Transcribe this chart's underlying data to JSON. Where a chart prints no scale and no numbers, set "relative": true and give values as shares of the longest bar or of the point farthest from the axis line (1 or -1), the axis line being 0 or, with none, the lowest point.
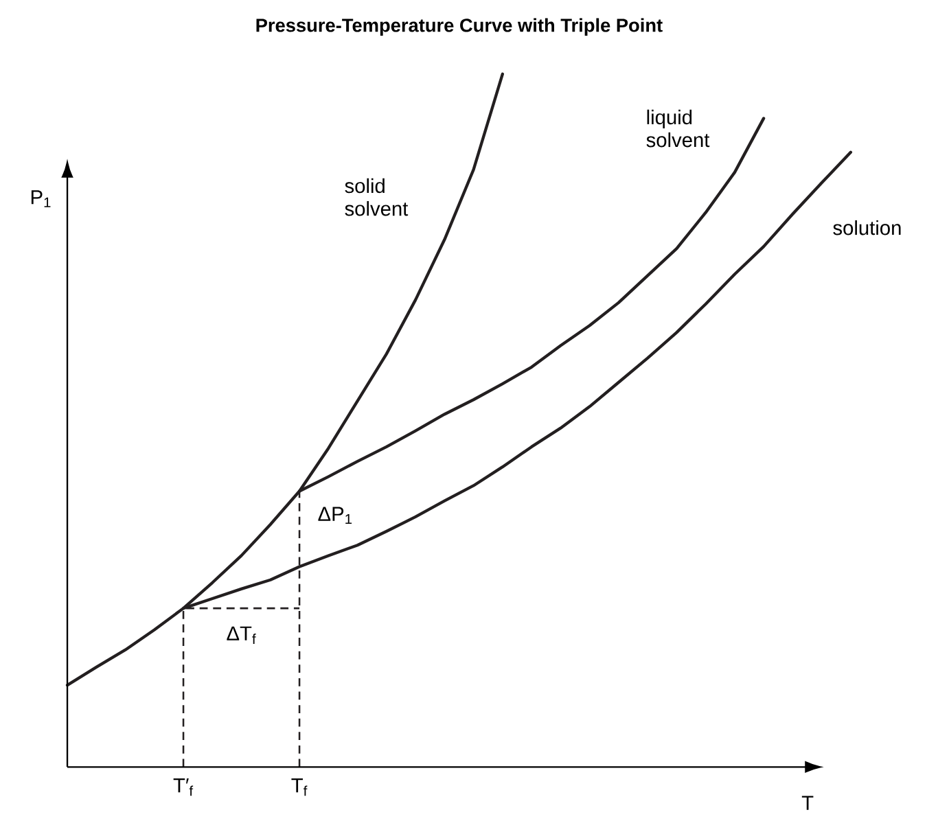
{
  "chart_data": {
    "type": "line",
    "title": "Pressure-Temperature Curve with Triple Point",
    "xlabel": "T",
    "ylabel": "P$_{1}$",
    "relative": true,
    "categories": [
      null,
      null,
      null,
      null,
      null,
      null,
      null,
      null,
      null,
      null,
      null,
      null,
      null,
      null,
      null,
      null,
      null,
      null,
      null,
      null,
      null,
      null,
      null,
      null,
      null,
      null,
      null,
      null
    ],
    "series": [
      {
        "name": "solid solvent",
        "color": "#231f20",
        "values": [
          0.118,
          0.144,
          0.169,
          0.198,
          0.229,
          0.266,
          0.305,
          0.35,
          0.398,
          0.46,
          0.528,
          0.596,
          0.674,
          0.761,
          0.862,
          1,
          null,
          null,
          null,
          null,
          null,
          null,
          null,
          null,
          null,
          null,
          null,
          null
        ]
      },
      {
        "name": "liquid solvent",
        "color": "#231f20",
        "values": [
          null,
          null,
          null,
          null,
          null,
          null,
          null,
          null,
          0.398,
          0.419,
          0.441,
          0.462,
          0.485,
          0.509,
          0.53,
          0.553,
          0.577,
          0.608,
          0.637,
          0.67,
          0.709,
          0.748,
          0.8,
          0.858,
          0.936,
          null,
          null,
          null
        ]
      },
      {
        "name": "solution",
        "color": "#231f20",
        "values": [
          null,
          null,
          null,
          null,
          0.229,
          0.243,
          0.257,
          0.27,
          0.289,
          0.305,
          0.32,
          0.34,
          0.361,
          0.384,
          0.406,
          0.433,
          0.462,
          0.489,
          0.52,
          0.555,
          0.59,
          0.627,
          0.668,
          0.711,
          0.751,
          0.798,
          0.843,
          0.887
        ]
      }
    ],
    "annotations": [
      "T′$_{f}$",
      "T$_{f}$",
      "ΔP$_{1}$",
      "ΔT$_{f}$"
    ]
  }
}
